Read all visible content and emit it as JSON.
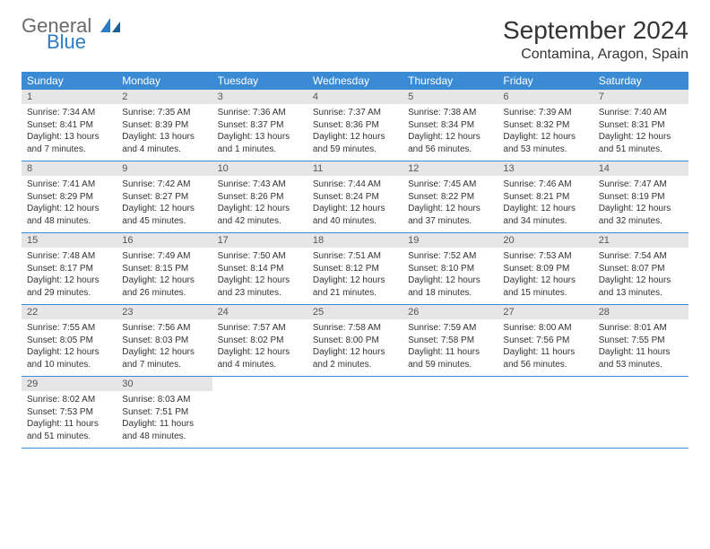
{
  "brand": {
    "general": "General",
    "blue": "Blue"
  },
  "title": "September 2024",
  "location": "Contamina, Aragon, Spain",
  "colors": {
    "header_bg": "#3b8bd4",
    "header_fg": "#ffffff",
    "daynum_bg": "#e6e6e6",
    "rule": "#3b8bd4",
    "text": "#333333",
    "logo_gray": "#6a6a6a",
    "logo_blue": "#2b7cc4"
  },
  "dow": [
    "Sunday",
    "Monday",
    "Tuesday",
    "Wednesday",
    "Thursday",
    "Friday",
    "Saturday"
  ],
  "weeks": [
    [
      {
        "n": "1",
        "sr": "7:34 AM",
        "ss": "8:41 PM",
        "dl": "13 hours and 7 minutes."
      },
      {
        "n": "2",
        "sr": "7:35 AM",
        "ss": "8:39 PM",
        "dl": "13 hours and 4 minutes."
      },
      {
        "n": "3",
        "sr": "7:36 AM",
        "ss": "8:37 PM",
        "dl": "13 hours and 1 minutes."
      },
      {
        "n": "4",
        "sr": "7:37 AM",
        "ss": "8:36 PM",
        "dl": "12 hours and 59 minutes."
      },
      {
        "n": "5",
        "sr": "7:38 AM",
        "ss": "8:34 PM",
        "dl": "12 hours and 56 minutes."
      },
      {
        "n": "6",
        "sr": "7:39 AM",
        "ss": "8:32 PM",
        "dl": "12 hours and 53 minutes."
      },
      {
        "n": "7",
        "sr": "7:40 AM",
        "ss": "8:31 PM",
        "dl": "12 hours and 51 minutes."
      }
    ],
    [
      {
        "n": "8",
        "sr": "7:41 AM",
        "ss": "8:29 PM",
        "dl": "12 hours and 48 minutes."
      },
      {
        "n": "9",
        "sr": "7:42 AM",
        "ss": "8:27 PM",
        "dl": "12 hours and 45 minutes."
      },
      {
        "n": "10",
        "sr": "7:43 AM",
        "ss": "8:26 PM",
        "dl": "12 hours and 42 minutes."
      },
      {
        "n": "11",
        "sr": "7:44 AM",
        "ss": "8:24 PM",
        "dl": "12 hours and 40 minutes."
      },
      {
        "n": "12",
        "sr": "7:45 AM",
        "ss": "8:22 PM",
        "dl": "12 hours and 37 minutes."
      },
      {
        "n": "13",
        "sr": "7:46 AM",
        "ss": "8:21 PM",
        "dl": "12 hours and 34 minutes."
      },
      {
        "n": "14",
        "sr": "7:47 AM",
        "ss": "8:19 PM",
        "dl": "12 hours and 32 minutes."
      }
    ],
    [
      {
        "n": "15",
        "sr": "7:48 AM",
        "ss": "8:17 PM",
        "dl": "12 hours and 29 minutes."
      },
      {
        "n": "16",
        "sr": "7:49 AM",
        "ss": "8:15 PM",
        "dl": "12 hours and 26 minutes."
      },
      {
        "n": "17",
        "sr": "7:50 AM",
        "ss": "8:14 PM",
        "dl": "12 hours and 23 minutes."
      },
      {
        "n": "18",
        "sr": "7:51 AM",
        "ss": "8:12 PM",
        "dl": "12 hours and 21 minutes."
      },
      {
        "n": "19",
        "sr": "7:52 AM",
        "ss": "8:10 PM",
        "dl": "12 hours and 18 minutes."
      },
      {
        "n": "20",
        "sr": "7:53 AM",
        "ss": "8:09 PM",
        "dl": "12 hours and 15 minutes."
      },
      {
        "n": "21",
        "sr": "7:54 AM",
        "ss": "8:07 PM",
        "dl": "12 hours and 13 minutes."
      }
    ],
    [
      {
        "n": "22",
        "sr": "7:55 AM",
        "ss": "8:05 PM",
        "dl": "12 hours and 10 minutes."
      },
      {
        "n": "23",
        "sr": "7:56 AM",
        "ss": "8:03 PM",
        "dl": "12 hours and 7 minutes."
      },
      {
        "n": "24",
        "sr": "7:57 AM",
        "ss": "8:02 PM",
        "dl": "12 hours and 4 minutes."
      },
      {
        "n": "25",
        "sr": "7:58 AM",
        "ss": "8:00 PM",
        "dl": "12 hours and 2 minutes."
      },
      {
        "n": "26",
        "sr": "7:59 AM",
        "ss": "7:58 PM",
        "dl": "11 hours and 59 minutes."
      },
      {
        "n": "27",
        "sr": "8:00 AM",
        "ss": "7:56 PM",
        "dl": "11 hours and 56 minutes."
      },
      {
        "n": "28",
        "sr": "8:01 AM",
        "ss": "7:55 PM",
        "dl": "11 hours and 53 minutes."
      }
    ],
    [
      {
        "n": "29",
        "sr": "8:02 AM",
        "ss": "7:53 PM",
        "dl": "11 hours and 51 minutes."
      },
      {
        "n": "30",
        "sr": "8:03 AM",
        "ss": "7:51 PM",
        "dl": "11 hours and 48 minutes."
      },
      null,
      null,
      null,
      null,
      null
    ]
  ],
  "labels": {
    "sunrise": "Sunrise:",
    "sunset": "Sunset:",
    "daylight": "Daylight:"
  }
}
